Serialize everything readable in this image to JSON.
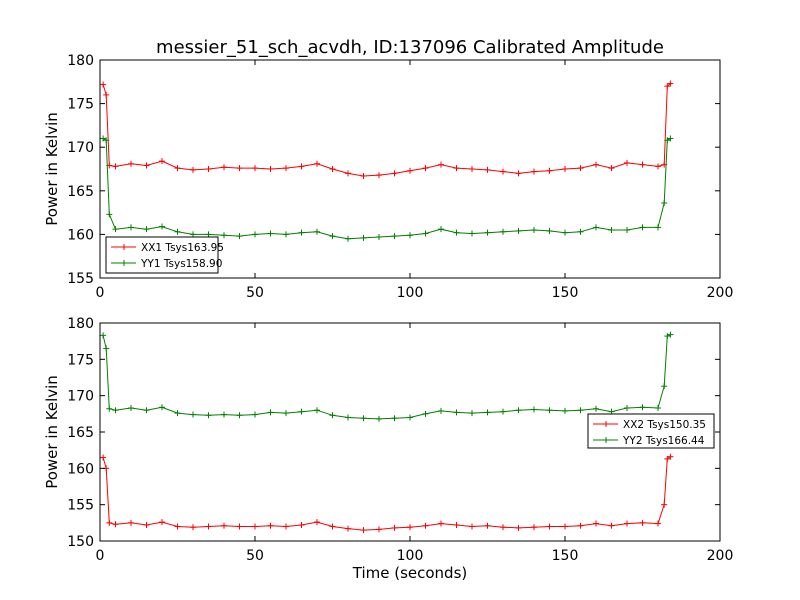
{
  "figure": {
    "title": "messier_51_sch_acvdh, ID:137096 Calibrated Amplitude",
    "xlabel": "Time (seconds)"
  },
  "colors": {
    "red": "#ff0000",
    "green": "#008000"
  },
  "chart_data": [
    {
      "type": "line",
      "ylabel": "Power in Kelvin",
      "xlim": [
        0,
        200
      ],
      "ylim": [
        155,
        180
      ],
      "xticks": [
        0,
        50,
        100,
        150,
        200
      ],
      "yticks": [
        155,
        160,
        165,
        170,
        175,
        180
      ],
      "legend_position": "lower-left",
      "series": [
        {
          "name": "XX1 Tsys163.95",
          "color": "#ff0000",
          "marker": "+",
          "x": [
            1,
            2,
            3,
            5,
            10,
            15,
            20,
            25,
            30,
            35,
            40,
            45,
            50,
            55,
            60,
            65,
            70,
            75,
            80,
            85,
            90,
            95,
            100,
            105,
            110,
            115,
            120,
            125,
            130,
            135,
            140,
            145,
            150,
            155,
            160,
            165,
            170,
            175,
            180,
            182,
            183,
            184
          ],
          "y": [
            177.2,
            176.0,
            167.9,
            167.8,
            168.1,
            167.9,
            168.4,
            167.6,
            167.4,
            167.5,
            167.7,
            167.6,
            167.6,
            167.5,
            167.6,
            167.8,
            168.1,
            167.5,
            167.0,
            166.7,
            166.8,
            167.0,
            167.3,
            167.6,
            168.0,
            167.6,
            167.5,
            167.4,
            167.2,
            167.0,
            167.2,
            167.3,
            167.5,
            167.6,
            168.0,
            167.6,
            168.2,
            168.0,
            167.8,
            168.0,
            177.0,
            177.3
          ]
        },
        {
          "name": "YY1 Tsys158.90",
          "color": "#008000",
          "marker": "+",
          "x": [
            1,
            2,
            3,
            5,
            10,
            15,
            20,
            25,
            30,
            35,
            40,
            45,
            50,
            55,
            60,
            65,
            70,
            75,
            80,
            85,
            90,
            95,
            100,
            105,
            110,
            115,
            120,
            125,
            130,
            135,
            140,
            145,
            150,
            155,
            160,
            165,
            170,
            175,
            180,
            182,
            183,
            184
          ],
          "y": [
            171.0,
            170.8,
            162.3,
            160.6,
            160.8,
            160.6,
            160.9,
            160.3,
            160.0,
            160.0,
            159.9,
            159.8,
            160.0,
            160.1,
            160.0,
            160.2,
            160.3,
            159.8,
            159.5,
            159.6,
            159.7,
            159.8,
            159.9,
            160.1,
            160.6,
            160.2,
            160.1,
            160.2,
            160.3,
            160.4,
            160.5,
            160.4,
            160.2,
            160.3,
            160.8,
            160.5,
            160.5,
            160.8,
            160.8,
            163.6,
            170.8,
            171.0
          ]
        }
      ]
    },
    {
      "type": "line",
      "ylabel": "Power in Kelvin",
      "xlim": [
        0,
        200
      ],
      "ylim": [
        150,
        180
      ],
      "xticks": [
        0,
        50,
        100,
        150,
        200
      ],
      "yticks": [
        150,
        155,
        160,
        165,
        170,
        175,
        180
      ],
      "legend_position": "center-right",
      "series": [
        {
          "name": "XX2 Tsys150.35",
          "color": "#ff0000",
          "marker": "+",
          "x": [
            1,
            2,
            3,
            5,
            10,
            15,
            20,
            25,
            30,
            35,
            40,
            45,
            50,
            55,
            60,
            65,
            70,
            75,
            80,
            85,
            90,
            95,
            100,
            105,
            110,
            115,
            120,
            125,
            130,
            135,
            140,
            145,
            150,
            155,
            160,
            165,
            170,
            175,
            180,
            182,
            183,
            184
          ],
          "y": [
            161.5,
            160.0,
            152.5,
            152.3,
            152.5,
            152.2,
            152.6,
            152.0,
            151.9,
            152.0,
            152.1,
            152.0,
            152.0,
            152.1,
            152.0,
            152.2,
            152.6,
            152.0,
            151.7,
            151.5,
            151.6,
            151.8,
            151.9,
            152.1,
            152.4,
            152.2,
            152.0,
            152.1,
            151.9,
            151.8,
            151.9,
            152.0,
            152.0,
            152.1,
            152.4,
            152.1,
            152.4,
            152.5,
            152.4,
            155.0,
            161.3,
            161.6
          ]
        },
        {
          "name": "YY2 Tsys166.44",
          "color": "#008000",
          "marker": "+",
          "x": [
            1,
            2,
            3,
            5,
            10,
            15,
            20,
            25,
            30,
            35,
            40,
            45,
            50,
            55,
            60,
            65,
            70,
            75,
            80,
            85,
            90,
            95,
            100,
            105,
            110,
            115,
            120,
            125,
            130,
            135,
            140,
            145,
            150,
            155,
            160,
            165,
            170,
            175,
            180,
            182,
            183,
            184
          ],
          "y": [
            178.3,
            176.5,
            168.2,
            168.0,
            168.3,
            168.0,
            168.4,
            167.6,
            167.4,
            167.3,
            167.4,
            167.3,
            167.4,
            167.7,
            167.6,
            167.8,
            168.0,
            167.3,
            167.0,
            166.9,
            166.8,
            166.9,
            167.0,
            167.5,
            167.9,
            167.7,
            167.6,
            167.7,
            167.8,
            168.0,
            168.1,
            168.0,
            167.9,
            168.0,
            168.2,
            167.8,
            168.3,
            168.4,
            168.3,
            171.3,
            178.2,
            178.4
          ]
        }
      ]
    }
  ]
}
